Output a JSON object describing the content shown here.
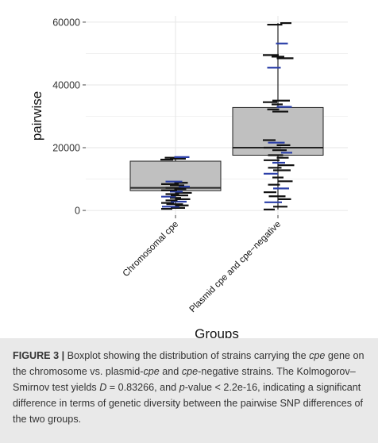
{
  "chart_data": {
    "type": "boxplot",
    "xlabel": "Groups",
    "ylabel": "pairwise",
    "ylim": [
      -1500,
      62000
    ],
    "yticks": [
      0,
      20000,
      40000,
      60000
    ],
    "ytick_labels": [
      "0",
      "20000",
      "40000",
      "60000"
    ],
    "categories": [
      "Chromosomal cpe",
      "Plasmid cpe and cpe−negative"
    ],
    "grid": true,
    "legend": "none",
    "colors": {
      "box_fill": "#c0c0c0",
      "box_stroke": "#222222",
      "points": "#111111",
      "points_alt": "#2b3fa8",
      "grid": "#e6e6e6"
    },
    "boxes": [
      {
        "q1": 6300,
        "median": 7200,
        "q3": 15700,
        "whisker_low": 500,
        "whisker_high": 17000
      },
      {
        "q1": 17600,
        "median": 20000,
        "q3": 32800,
        "whisker_low": 300,
        "whisker_high": 59700
      }
    ],
    "points": [
      [
        500,
        800,
        1200,
        1600,
        2000,
        2400,
        2800,
        3200,
        3600,
        4000,
        4400,
        4800,
        5200,
        5600,
        6000,
        6400,
        6800,
        7200,
        7600,
        8000,
        8400,
        8800,
        9200,
        16200,
        16500,
        16800,
        17000
      ],
      [
        300,
        1200,
        2600,
        3600,
        4500,
        5800,
        7000,
        8200,
        9300,
        10500,
        11700,
        12800,
        13600,
        14400,
        15200,
        16000,
        16800,
        17600,
        18400,
        19200,
        20000,
        20800,
        21600,
        22400,
        31500,
        32200,
        33000,
        33800,
        34500,
        35000,
        45500,
        48500,
        49000,
        49500,
        53200,
        59200,
        59700
      ]
    ]
  },
  "caption": {
    "figure_label": "FIGURE 3 |",
    "parts": [
      " Boxplot showing the distribution of strains carrying the ",
      "cpe",
      " gene on the chromosome vs. plasmid-",
      "cpe",
      " and ",
      "cpe",
      "-negative strains. The Kolmogorov–Smirnov test yields ",
      "D",
      " = 0.83266, and ",
      "p",
      "-value < 2.2e-16, indicating a significant difference in terms of genetic diversity between the pairwise SNP differences of the two groups."
    ]
  }
}
